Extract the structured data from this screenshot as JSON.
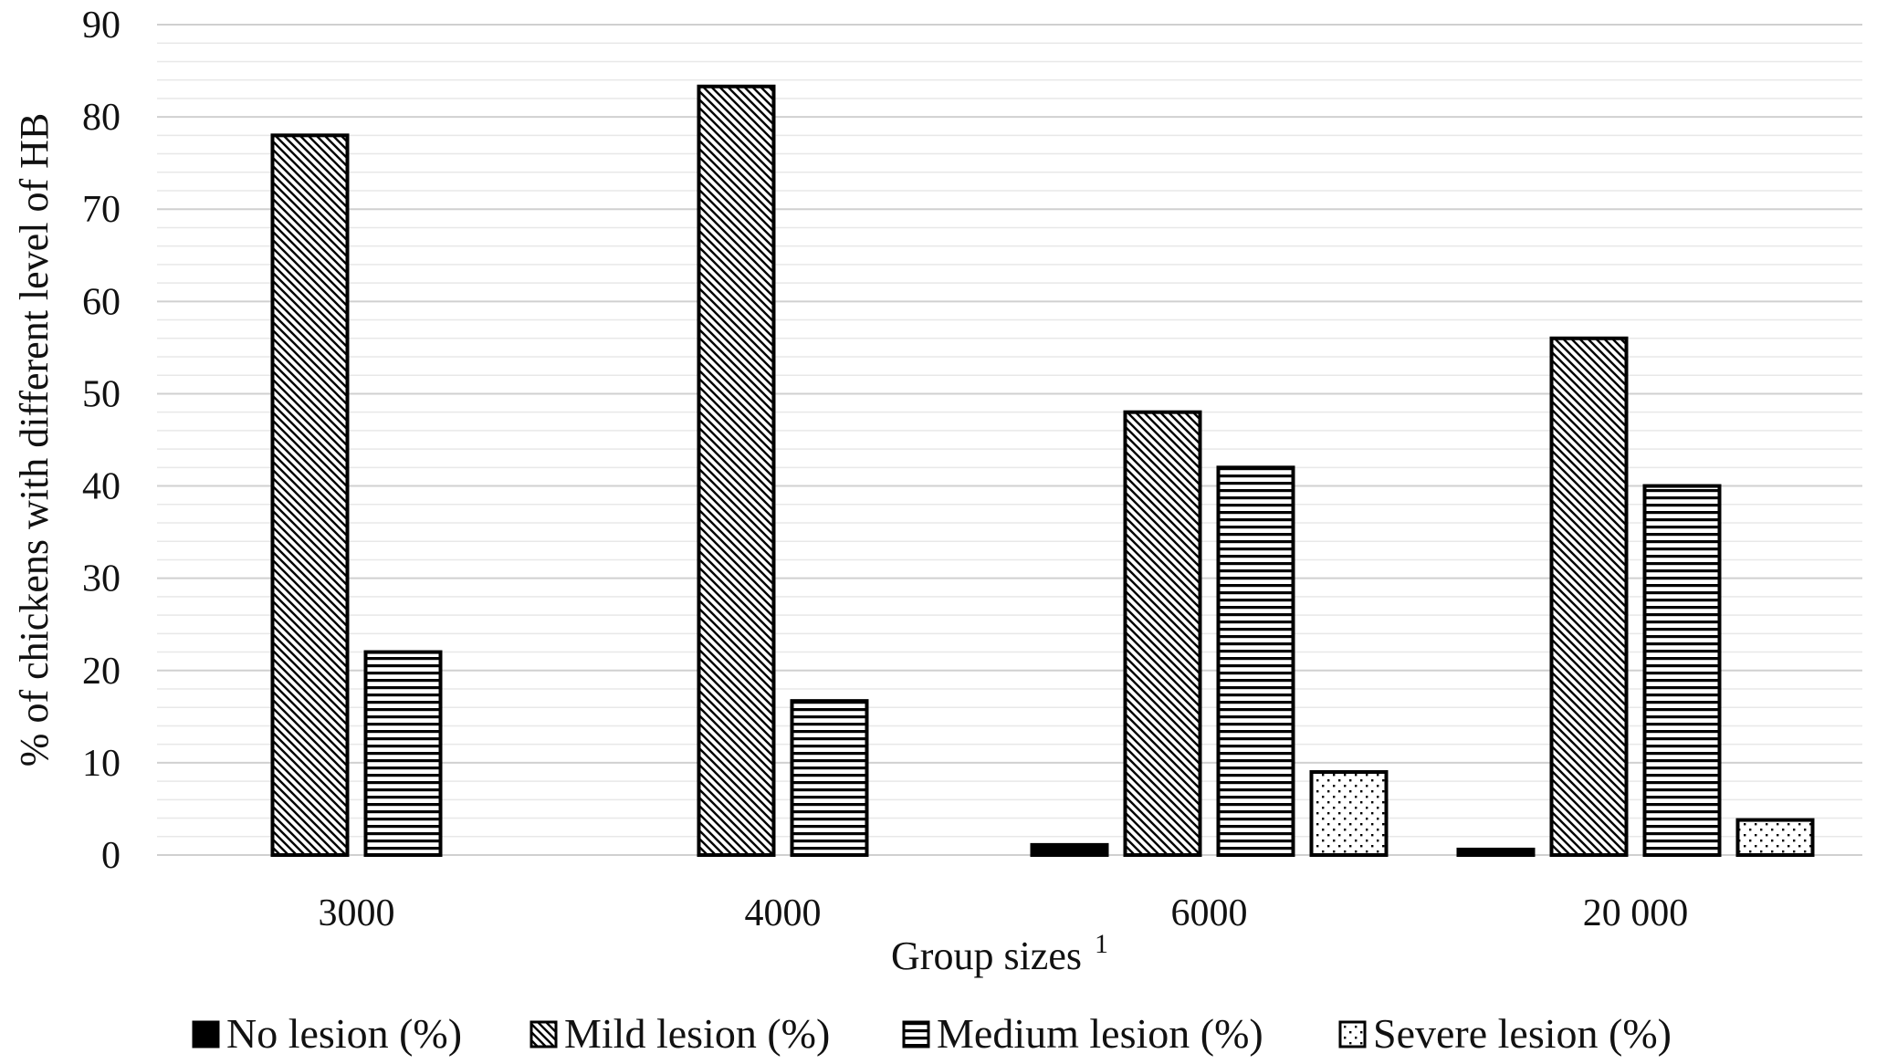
{
  "chart_data": {
    "type": "bar",
    "title": "",
    "xlabel": "Group sizes",
    "xlabel_superscript": "1",
    "ylabel": "% of chickens with different level of  HB",
    "ylim": [
      0,
      90
    ],
    "yticks": [
      0,
      10,
      20,
      30,
      40,
      50,
      60,
      70,
      80,
      90
    ],
    "minor_grid_step": 2,
    "grid": true,
    "legend_position": "bottom",
    "categories": [
      "3000",
      "4000",
      "6000",
      "20 000"
    ],
    "series": [
      {
        "name": "No lesion (%)",
        "pattern": "solid",
        "values": [
          0,
          0,
          1.1,
          0.6
        ]
      },
      {
        "name": "Mild lesion (%)",
        "pattern": "diagonal",
        "values": [
          78,
          83.3,
          48,
          56
        ]
      },
      {
        "name": "Medium lesion (%)",
        "pattern": "horizontal",
        "values": [
          22,
          16.7,
          42,
          40
        ]
      },
      {
        "name": "Severe lesion (%)",
        "pattern": "dots",
        "values": [
          0,
          0,
          9,
          3.8
        ]
      }
    ],
    "colors": {
      "bar_stroke": "#000000",
      "grid_major": "#d0d0d0",
      "grid_minor": "#e8e8e8"
    }
  }
}
